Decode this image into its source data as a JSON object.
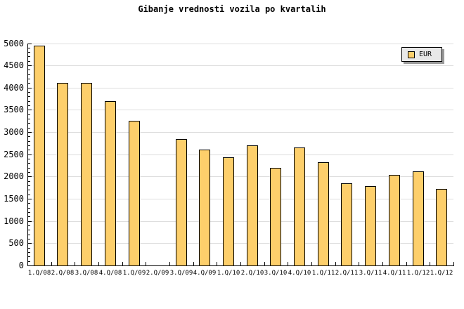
{
  "title": "Gibanje vrednosti vozila po kvartalih",
  "legend": {
    "label": "EUR"
  },
  "colors": {
    "background": "#ffffff",
    "text": "#000000",
    "axis": "#000000",
    "grid": "#dddddd",
    "bar_fill": "#fdcf6b",
    "bar_border": "#000000",
    "legend_bg": "#e8e8e8",
    "legend_shadow": "#999999"
  },
  "chart_data": {
    "type": "bar",
    "title": "Gibanje vrednosti vozila po kvartalih",
    "categories": [
      "1.Q/08",
      "2.Q/08",
      "3.Q/08",
      "4.Q/08",
      "1.Q/09",
      "2.Q/09",
      "3.Q/09",
      "4.Q/09",
      "1.Q/10",
      "2.Q/10",
      "3.Q/10",
      "4.Q/10",
      "1.Q/11",
      "2.Q/11",
      "3.Q/11",
      "4.Q/11",
      "1.Q/12",
      "1.Q/12"
    ],
    "series": [
      {
        "name": "EUR",
        "values": [
          4950,
          4100,
          4100,
          3700,
          3250,
          null,
          2850,
          2600,
          2430,
          2700,
          2200,
          2650,
          2320,
          1850,
          1780,
          2040,
          2110,
          1720
        ]
      }
    ],
    "missing_categories": [
      "2.Q/09"
    ],
    "ylim": [
      0,
      5000
    ],
    "yticks": [
      0,
      500,
      1000,
      1500,
      2000,
      2500,
      3000,
      3500,
      4000,
      4500,
      5000
    ],
    "y_minor_tick_step": 100,
    "xlabel": "",
    "ylabel": "",
    "grid": "horizontal",
    "legend_position": "top-right"
  }
}
